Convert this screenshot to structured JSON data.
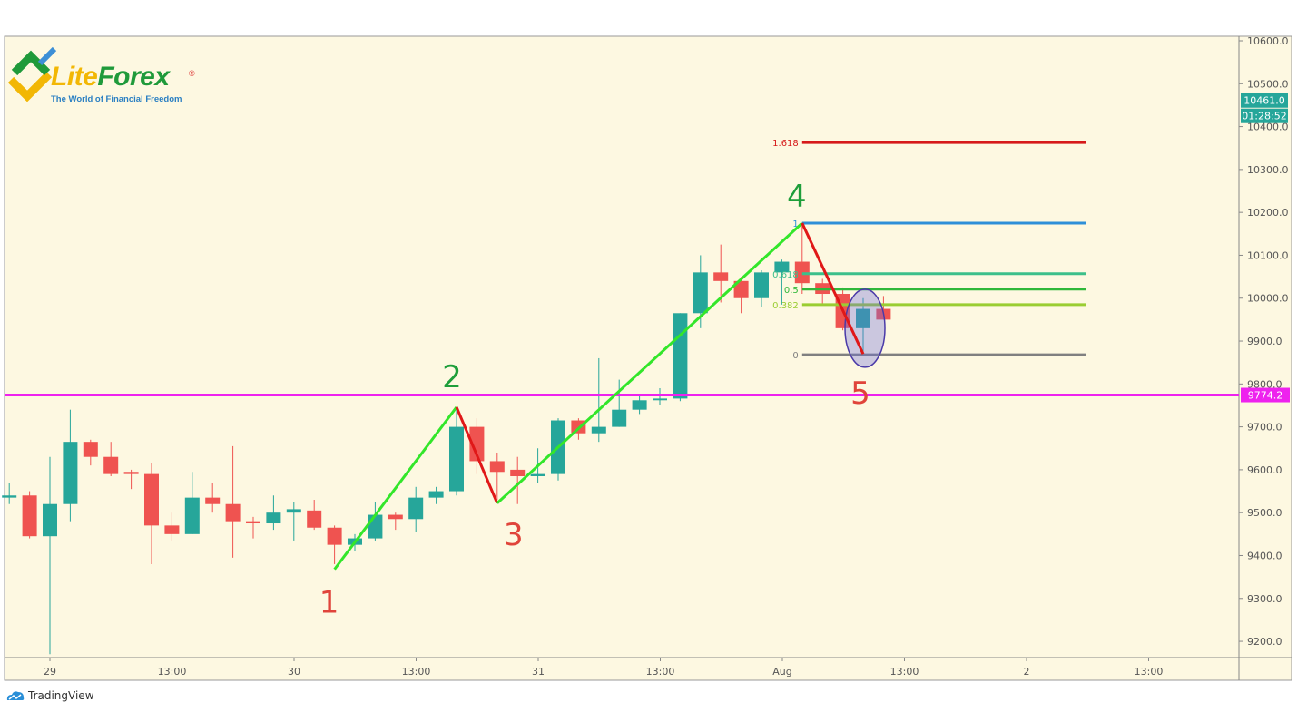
{
  "logo": {
    "text_lite": "Lite",
    "text_forex": "Forex",
    "registered": "®",
    "tagline": "The World of Financial Freedom"
  },
  "footer": {
    "brand": "TradingView",
    "icon": "tradingview-cloud-icon"
  },
  "colors": {
    "background": "#fdf8e1",
    "up": "#26a69a",
    "down": "#ef5350",
    "level_line": "#ee22ee",
    "wave_up": "#33e62a",
    "wave_down": "#e01818",
    "badge": "#26a69a"
  },
  "chart_data": {
    "type": "candlestick",
    "interval": "2h",
    "ylim": [
      9150,
      10630
    ],
    "grid": false,
    "y_ticks": [
      10600,
      10500,
      10400,
      10300,
      10200,
      10100,
      10000,
      9900,
      9800,
      9700,
      9600,
      9500,
      9400,
      9300,
      9200
    ],
    "y_tick_format": "0.0",
    "x_ticks": [
      "29",
      "13:00",
      "30",
      "13:00",
      "31",
      "13:00",
      "Aug",
      "13:00",
      "2",
      "13:00"
    ],
    "price_badge": {
      "value": "10461.0",
      "countdown": "01:28:52"
    },
    "horizontal_level": {
      "value": 9774.2,
      "label": "9774.2"
    },
    "candles": [
      {
        "t": "28 20:00",
        "o": 9535,
        "h": 9570,
        "l": 9520,
        "c": 9540
      },
      {
        "t": "28 22:00",
        "o": 9540,
        "h": 9550,
        "l": 9440,
        "c": 9445
      },
      {
        "t": "29 00:00",
        "o": 9445,
        "h": 9630,
        "l": 9170,
        "c": 9520
      },
      {
        "t": "29 02:00",
        "o": 9520,
        "h": 9740,
        "l": 9480,
        "c": 9665
      },
      {
        "t": "29 04:00",
        "o": 9665,
        "h": 9670,
        "l": 9610,
        "c": 9630
      },
      {
        "t": "29 06:00",
        "o": 9630,
        "h": 9665,
        "l": 9585,
        "c": 9590
      },
      {
        "t": "29 08:00",
        "o": 9595,
        "h": 9600,
        "l": 9555,
        "c": 9590
      },
      {
        "t": "29 10:00",
        "o": 9590,
        "h": 9615,
        "l": 9380,
        "c": 9470
      },
      {
        "t": "29 12:00",
        "o": 9470,
        "h": 9500,
        "l": 9435,
        "c": 9450
      },
      {
        "t": "29 14:00",
        "o": 9450,
        "h": 9595,
        "l": 9450,
        "c": 9535
      },
      {
        "t": "29 16:00",
        "o": 9535,
        "h": 9570,
        "l": 9500,
        "c": 9520
      },
      {
        "t": "29 18:00",
        "o": 9520,
        "h": 9655,
        "l": 9395,
        "c": 9480
      },
      {
        "t": "29 20:00",
        "o": 9480,
        "h": 9490,
        "l": 9440,
        "c": 9475
      },
      {
        "t": "29 22:00",
        "o": 9475,
        "h": 9540,
        "l": 9460,
        "c": 9500
      },
      {
        "t": "30 00:00",
        "o": 9500,
        "h": 9525,
        "l": 9435,
        "c": 9508
      },
      {
        "t": "30 02:00",
        "o": 9505,
        "h": 9530,
        "l": 9460,
        "c": 9465
      },
      {
        "t": "30 04:00",
        "o": 9465,
        "h": 9470,
        "l": 9380,
        "c": 9425
      },
      {
        "t": "30 06:00",
        "o": 9425,
        "h": 9450,
        "l": 9410,
        "c": 9440
      },
      {
        "t": "30 08:00",
        "o": 9440,
        "h": 9525,
        "l": 9435,
        "c": 9495
      },
      {
        "t": "30 10:00",
        "o": 9495,
        "h": 9500,
        "l": 9460,
        "c": 9485
      },
      {
        "t": "30 12:00",
        "o": 9485,
        "h": 9560,
        "l": 9455,
        "c": 9535
      },
      {
        "t": "30 14:00",
        "o": 9535,
        "h": 9560,
        "l": 9520,
        "c": 9550
      },
      {
        "t": "30 16:00",
        "o": 9550,
        "h": 9745,
        "l": 9540,
        "c": 9700
      },
      {
        "t": "30 18:00",
        "o": 9700,
        "h": 9720,
        "l": 9590,
        "c": 9620
      },
      {
        "t": "30 20:00",
        "o": 9620,
        "h": 9640,
        "l": 9530,
        "c": 9595
      },
      {
        "t": "30 22:00",
        "o": 9600,
        "h": 9630,
        "l": 9520,
        "c": 9585
      },
      {
        "t": "31 00:00",
        "o": 9585,
        "h": 9650,
        "l": 9570,
        "c": 9590
      },
      {
        "t": "31 02:00",
        "o": 9590,
        "h": 9720,
        "l": 9575,
        "c": 9715
      },
      {
        "t": "31 04:00",
        "o": 9715,
        "h": 9720,
        "l": 9670,
        "c": 9685
      },
      {
        "t": "31 06:00",
        "o": 9685,
        "h": 9860,
        "l": 9665,
        "c": 9700
      },
      {
        "t": "31 08:00",
        "o": 9700,
        "h": 9810,
        "l": 9700,
        "c": 9740
      },
      {
        "t": "31 10:00",
        "o": 9740,
        "h": 9775,
        "l": 9730,
        "c": 9762
      },
      {
        "t": "31 12:00",
        "o": 9762,
        "h": 9790,
        "l": 9750,
        "c": 9766
      },
      {
        "t": "31 14:00",
        "o": 9766,
        "h": 9965,
        "l": 9760,
        "c": 9965
      },
      {
        "t": "31 16:00",
        "o": 9965,
        "h": 10100,
        "l": 9930,
        "c": 10060
      },
      {
        "t": "31 18:00",
        "o": 10060,
        "h": 10125,
        "l": 9990,
        "c": 10040
      },
      {
        "t": "31 20:00",
        "o": 10040,
        "h": 10050,
        "l": 9965,
        "c": 10000
      },
      {
        "t": "31 22:00",
        "o": 10000,
        "h": 10065,
        "l": 9980,
        "c": 10060
      },
      {
        "t": "Aug 1 00:00",
        "o": 10060,
        "h": 10090,
        "l": 9985,
        "c": 10085
      },
      {
        "t": "Aug 1 02:00",
        "o": 10085,
        "h": 10170,
        "l": 10010,
        "c": 10035
      },
      {
        "t": "Aug 1 04:00",
        "o": 10035,
        "h": 10045,
        "l": 9985,
        "c": 10010
      },
      {
        "t": "Aug 1 06:00",
        "o": 10010,
        "h": 10025,
        "l": 9925,
        "c": 9930
      },
      {
        "t": "Aug 1 08:00",
        "o": 9930,
        "h": 10000,
        "l": 9870,
        "c": 9975
      },
      {
        "t": "Aug 1 10:00",
        "o": 9975,
        "h": 10005,
        "l": 9950,
        "c": 9950
      }
    ],
    "waves": [
      {
        "label": "1",
        "t": "30 04:00",
        "price": 9368
      },
      {
        "label": "2",
        "t": "30 16:00",
        "price": 9746
      },
      {
        "label": "3",
        "t": "30 20:00",
        "price": 9522
      },
      {
        "label": "4",
        "t": "Aug 1 02:00",
        "price": 10175
      },
      {
        "label": "5",
        "t": "Aug 1 08:00",
        "price": 9870
      }
    ],
    "fibonacci": [
      {
        "label": "1.618",
        "price": 10363,
        "color": "#d61a1a"
      },
      {
        "label": "1",
        "price": 10175,
        "color": "#2e8fd8"
      },
      {
        "label": "0.618",
        "price": 10057,
        "color": "#3cbf8a"
      },
      {
        "label": "0.5",
        "price": 10021,
        "color": "#2fb83a"
      },
      {
        "label": "0.382",
        "price": 9985,
        "color": "#9acd32"
      },
      {
        "label": "0",
        "price": 9868,
        "color": "#808080"
      }
    ],
    "highlight_ellipse": {
      "t": "Aug 1 08:00",
      "price": 9930
    }
  }
}
